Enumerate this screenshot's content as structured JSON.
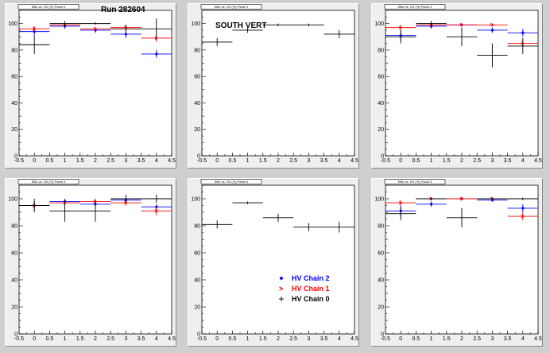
{
  "page_colors": {
    "background": "#cfcfcf",
    "panel": "#efefef",
    "frame": "#ffffff"
  },
  "legend": {
    "entries": [
      {
        "label": "HV Chain 2",
        "color": "#0000ff",
        "marker": "diamond"
      },
      {
        "label": "HV Chain 1",
        "color": "#ff0000",
        "marker": "arrow"
      },
      {
        "label": "HV Chain 0",
        "color": "#000000",
        "marker": "cross"
      }
    ]
  },
  "chart_data": [
    {
      "type": "scatter",
      "panel_title": "Effic vs. HV (%) Panel 0",
      "annotation": "Run 282604",
      "xlim": [
        -0.5,
        4.5
      ],
      "ylim": [
        0,
        110
      ],
      "xticks": [
        "-0.5",
        "0",
        "0.5",
        "1",
        "1.5",
        "2",
        "2.5",
        "3",
        "3.5",
        "4",
        "4.5"
      ],
      "yticks": [
        "0",
        "20",
        "40",
        "60",
        "80",
        "100"
      ],
      "series": [
        {
          "color": "#0000ff",
          "marker": "diamond",
          "points": [
            {
              "x": 0,
              "y": 94,
              "err": 3
            },
            {
              "x": 1,
              "y": 98,
              "err": 2
            },
            {
              "x": 2,
              "y": 95,
              "err": 2
            },
            {
              "x": 3,
              "y": 92,
              "err": 3
            },
            {
              "x": 4,
              "y": 77,
              "err": 3
            }
          ]
        },
        {
          "color": "#ff0000",
          "marker": "arrow",
          "points": [
            {
              "x": 0,
              "y": 96,
              "err": 2
            },
            {
              "x": 1,
              "y": 99,
              "err": 1
            },
            {
              "x": 2,
              "y": 96,
              "err": 1
            },
            {
              "x": 3,
              "y": 97,
              "err": 2
            },
            {
              "x": 4,
              "y": 89,
              "err": 3
            }
          ]
        },
        {
          "color": "#000000",
          "marker": "cross",
          "points": [
            {
              "x": 0,
              "y": 84,
              "err": 7
            },
            {
              "x": 1,
              "y": 100,
              "err": 2
            },
            {
              "x": 2,
              "y": 100,
              "err": 1
            },
            {
              "x": 3,
              "y": 96,
              "err": 3
            },
            {
              "x": 4,
              "y": 96,
              "err": 8
            }
          ]
        }
      ]
    },
    {
      "type": "scatter",
      "panel_title": "Effic vs. HV (%) Panel 1",
      "annotation": "SOUTH VERT",
      "xlim": [
        -0.5,
        4.5
      ],
      "ylim": [
        0,
        110
      ],
      "xticks": [
        "-0.5",
        "0",
        "0.5",
        "1",
        "1.5",
        "2",
        "2.5",
        "3",
        "3.5",
        "4",
        "4.5"
      ],
      "yticks": [
        "0",
        "20",
        "40",
        "60",
        "80",
        "100"
      ],
      "series": [
        {
          "color": "#000000",
          "marker": "cross",
          "points": [
            {
              "x": 0,
              "y": 86,
              "err": 3
            },
            {
              "x": 1,
              "y": 95,
              "err": 2
            },
            {
              "x": 2,
              "y": 99,
              "err": 1
            },
            {
              "x": 3,
              "y": 99,
              "err": 1
            },
            {
              "x": 4,
              "y": 92,
              "err": 3
            }
          ]
        }
      ]
    },
    {
      "type": "scatter",
      "panel_title": "Effic vs. HV (%) Panel 2",
      "annotation": "",
      "xlim": [
        -0.5,
        4.5
      ],
      "ylim": [
        0,
        110
      ],
      "xticks": [
        "-0.5",
        "0",
        "0.5",
        "1",
        "1.5",
        "2",
        "2.5",
        "3",
        "3.5",
        "4",
        "4.5"
      ],
      "yticks": [
        "0",
        "20",
        "40",
        "60",
        "80",
        "100"
      ],
      "series": [
        {
          "color": "#0000ff",
          "marker": "diamond",
          "points": [
            {
              "x": 0,
              "y": 91,
              "err": 4
            },
            {
              "x": 1,
              "y": 98,
              "err": 2
            },
            {
              "x": 2,
              "y": 99,
              "err": 1
            },
            {
              "x": 3,
              "y": 95,
              "err": 2
            },
            {
              "x": 4,
              "y": 93,
              "err": 3
            }
          ]
        },
        {
          "color": "#ff0000",
          "marker": "arrow",
          "points": [
            {
              "x": 0,
              "y": 97,
              "err": 2
            },
            {
              "x": 1,
              "y": 99,
              "err": 1
            },
            {
              "x": 2,
              "y": 99,
              "err": 1
            },
            {
              "x": 3,
              "y": 99,
              "err": 1
            },
            {
              "x": 4,
              "y": 85,
              "err": 3
            }
          ]
        },
        {
          "color": "#000000",
          "marker": "cross",
          "points": [
            {
              "x": 0,
              "y": 90,
              "err": 5
            },
            {
              "x": 1,
              "y": 100,
              "err": 2
            },
            {
              "x": 2,
              "y": 90,
              "err": 7
            },
            {
              "x": 3,
              "y": 76,
              "err": 9
            },
            {
              "x": 4,
              "y": 83,
              "err": 6
            }
          ]
        }
      ]
    },
    {
      "type": "scatter",
      "panel_title": "Effic vs. HV (%) Panel 3",
      "annotation": "",
      "xlim": [
        -0.5,
        4.5
      ],
      "ylim": [
        0,
        110
      ],
      "xticks": [
        "-0.5",
        "0",
        "0.5",
        "1",
        "1.5",
        "2",
        "2.5",
        "3",
        "3.5",
        "4",
        "4.5"
      ],
      "yticks": [
        "0",
        "20",
        "40",
        "60",
        "80",
        "100"
      ],
      "series": [
        {
          "color": "#0000ff",
          "marker": "diamond",
          "points": [
            {
              "x": 0,
              "y": 95,
              "err": 3
            },
            {
              "x": 1,
              "y": 98,
              "err": 2
            },
            {
              "x": 2,
              "y": 96,
              "err": 2
            },
            {
              "x": 3,
              "y": 99,
              "err": 1
            },
            {
              "x": 4,
              "y": 94,
              "err": 2
            }
          ]
        },
        {
          "color": "#ff0000",
          "marker": "arrow",
          "points": [
            {
              "x": 0,
              "y": 95,
              "err": 2
            },
            {
              "x": 1,
              "y": 97,
              "err": 2
            },
            {
              "x": 2,
              "y": 98,
              "err": 2
            },
            {
              "x": 3,
              "y": 97,
              "err": 2
            },
            {
              "x": 4,
              "y": 91,
              "err": 3
            }
          ]
        },
        {
          "color": "#000000",
          "marker": "cross",
          "points": [
            {
              "x": 0,
              "y": 95,
              "err": 5
            },
            {
              "x": 1,
              "y": 91,
              "err": 8
            },
            {
              "x": 2,
              "y": 91,
              "err": 8
            },
            {
              "x": 3,
              "y": 100,
              "err": 3
            },
            {
              "x": 4,
              "y": 100,
              "err": 3
            }
          ]
        }
      ]
    },
    {
      "type": "scatter",
      "panel_title": "Effic vs. HV (%) Panel 4",
      "annotation": "",
      "show_legend": true,
      "xlim": [
        -0.5,
        4.5
      ],
      "ylim": [
        0,
        110
      ],
      "xticks": [
        "-0.5",
        "0",
        "0.5",
        "1",
        "1.5",
        "2",
        "2.5",
        "3",
        "3.5",
        "4",
        "4.5"
      ],
      "yticks": [
        "0",
        "20",
        "40",
        "60",
        "80",
        "100"
      ],
      "series": [
        {
          "color": "#000000",
          "marker": "cross",
          "points": [
            {
              "x": 0,
              "y": 81,
              "err": 3
            },
            {
              "x": 1,
              "y": 97,
              "err": 1
            },
            {
              "x": 2,
              "y": 86,
              "err": 3
            },
            {
              "x": 3,
              "y": 79,
              "err": 3
            },
            {
              "x": 4,
              "y": 79,
              "err": 4
            }
          ]
        }
      ]
    },
    {
      "type": "scatter",
      "panel_title": "Effic vs. HV (%) Panel 5",
      "annotation": "",
      "xlim": [
        -0.5,
        4.5
      ],
      "ylim": [
        0,
        110
      ],
      "xticks": [
        "-0.5",
        "0",
        "0.5",
        "1",
        "1.5",
        "2",
        "2.5",
        "3",
        "3.5",
        "4",
        "4.5"
      ],
      "yticks": [
        "0",
        "20",
        "40",
        "60",
        "80",
        "100"
      ],
      "series": [
        {
          "color": "#0000ff",
          "marker": "diamond",
          "points": [
            {
              "x": 0,
              "y": 91,
              "err": 4
            },
            {
              "x": 1,
              "y": 96,
              "err": 2
            },
            {
              "x": 2,
              "y": 100,
              "err": 1
            },
            {
              "x": 3,
              "y": 99,
              "err": 1
            },
            {
              "x": 4,
              "y": 93,
              "err": 3
            }
          ]
        },
        {
          "color": "#ff0000",
          "marker": "arrow",
          "points": [
            {
              "x": 0,
              "y": 97,
              "err": 2
            },
            {
              "x": 1,
              "y": 100,
              "err": 1
            },
            {
              "x": 2,
              "y": 100,
              "err": 1
            },
            {
              "x": 3,
              "y": 100,
              "err": 1
            },
            {
              "x": 4,
              "y": 87,
              "err": 3
            }
          ]
        },
        {
          "color": "#000000",
          "marker": "cross",
          "points": [
            {
              "x": 0,
              "y": 89,
              "err": 5
            },
            {
              "x": 1,
              "y": 100,
              "err": 1
            },
            {
              "x": 2,
              "y": 86,
              "err": 7
            },
            {
              "x": 3,
              "y": 100,
              "err": 1
            },
            {
              "x": 4,
              "y": 100,
              "err": 1
            }
          ]
        }
      ]
    }
  ]
}
